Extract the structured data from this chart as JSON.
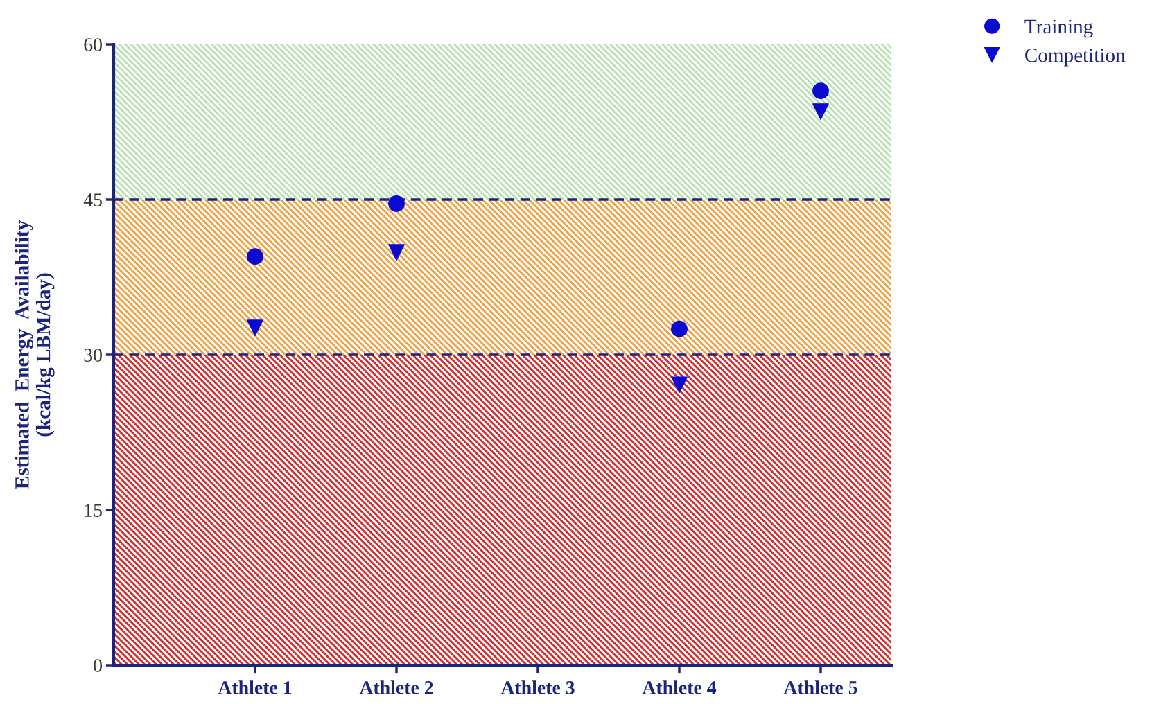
{
  "chart_data": {
    "type": "scatter",
    "categories": [
      "Athlete 1",
      "Athlete 2",
      "Athlete 3",
      "Athlete 4",
      "Athlete 5"
    ],
    "ylim": [
      0,
      60
    ],
    "yticks": [
      0,
      15,
      30,
      45,
      60
    ],
    "legend": "top right",
    "grid": false,
    "ylabel": "Estimated  Energy  Availability\n(kcal/kg LBM/day)",
    "series": [
      {
        "name": "Training",
        "color": "#0a0ad0",
        "marker": "circle",
        "values": [
          39.5,
          44.6,
          null,
          32.5,
          55.5
        ]
      },
      {
        "name": "Competition",
        "color": "#0a0ad0",
        "marker": "triangle",
        "values": [
          32.6,
          39.9,
          null,
          27.1,
          53.5
        ]
      }
    ],
    "bands": [
      {
        "axis": "y",
        "from": 45,
        "to": 60,
        "color": "#b8e0b0"
      },
      {
        "axis": "y",
        "from": 30,
        "to": 45,
        "color": "#f0a040"
      },
      {
        "axis": "y",
        "from": 0,
        "to": 30,
        "color": "#d42a2a"
      }
    ],
    "ref_lines": [
      {
        "axis": "y",
        "value": 45,
        "color": "#1a237e",
        "line_style": "dashed"
      },
      {
        "axis": "y",
        "value": 30,
        "color": "#1a237e",
        "line_style": "dashed"
      }
    ]
  }
}
